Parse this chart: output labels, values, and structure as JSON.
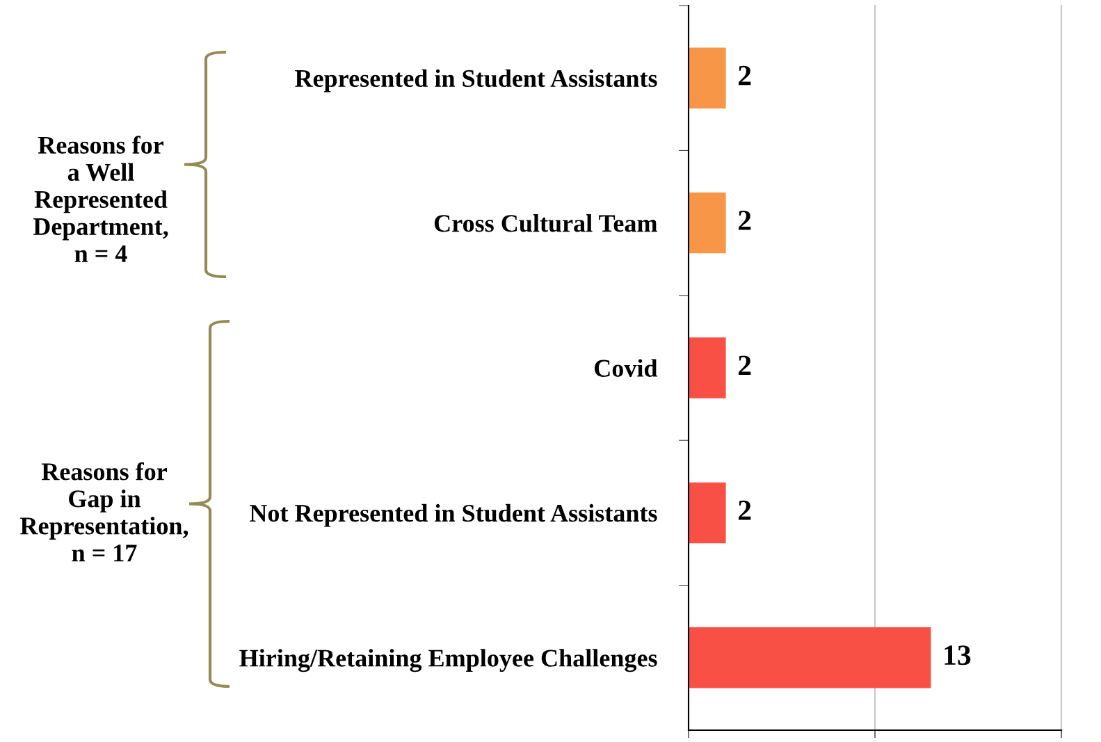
{
  "chart_data": {
    "type": "bar",
    "orientation": "horizontal",
    "categories": [
      "Represented in Student Assistants",
      "Cross Cultural Team",
      "Covid",
      "Not Represented in Student Assistants",
      "Hiring/Retaining Employee Challenges"
    ],
    "values": [
      2,
      2,
      2,
      2,
      13
    ],
    "colors": [
      "#f79646",
      "#f79646",
      "#f95045",
      "#f95045",
      "#f95045"
    ],
    "xlim": [
      0,
      20
    ],
    "xticks": [
      {
        "value": 0,
        "label": null
      },
      {
        "value": 10,
        "label": null
      },
      {
        "value": 20,
        "label": null
      }
    ],
    "tick_labels": "y",
    "grid": "x",
    "data_labels": true,
    "annotations": [
      "Reasons for\na Well\nRepresented\nDepartment,\nn = 4",
      "Reasons for\nGap in\nRepresentation,\nn = 17"
    ]
  }
}
